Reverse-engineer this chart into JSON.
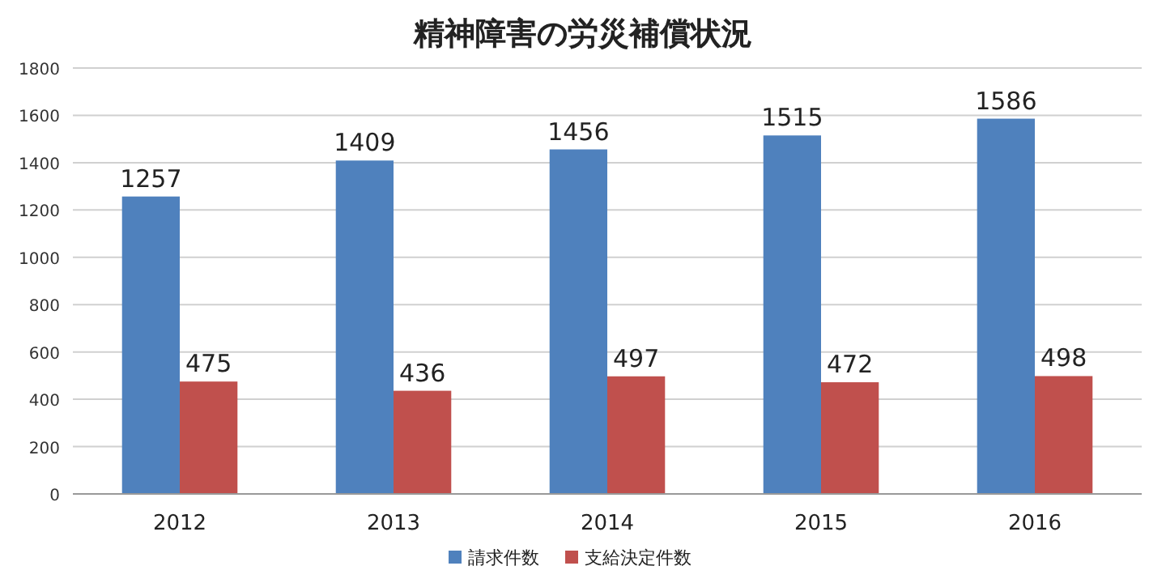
{
  "chart_data": {
    "type": "bar",
    "title": "精神障害の労災補償状況",
    "categories": [
      "2012",
      "2013",
      "2014",
      "2015",
      "2016"
    ],
    "series": [
      {
        "name": "請求件数",
        "color": "#4f81bd",
        "values": [
          1257,
          1409,
          1456,
          1515,
          1586
        ]
      },
      {
        "name": "支給決定件数",
        "color": "#c0504d",
        "values": [
          475,
          436,
          497,
          472,
          498
        ]
      }
    ],
    "ylim": [
      0,
      1800
    ],
    "yticks": [
      0,
      200,
      400,
      600,
      800,
      1000,
      1200,
      1400,
      1600,
      1800
    ],
    "grid": "y",
    "legend": "bottom",
    "data_labels": true
  }
}
